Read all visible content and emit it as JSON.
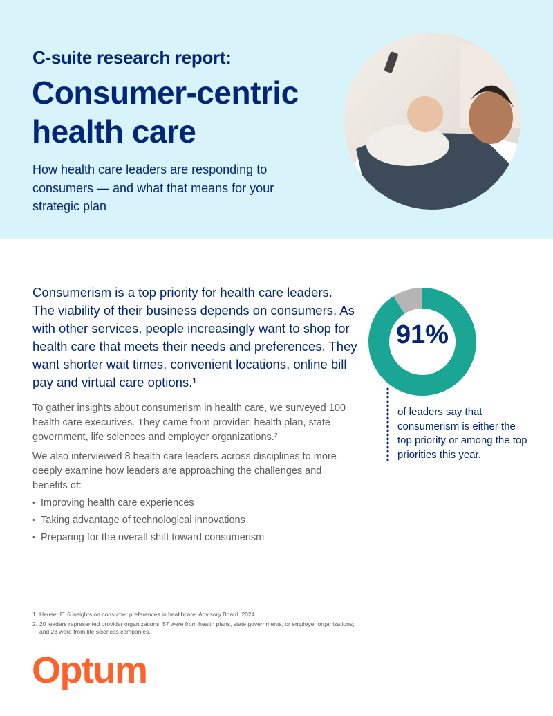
{
  "header": {
    "eyebrow": "C-suite research report:",
    "title": "Consumer-centric health care",
    "subtitle": "How health care leaders are responding to consumers — and what that means for your strategic plan"
  },
  "body": {
    "lead": "Consumerism is a top priority for health care leaders. The viability of their business depends on consumers. As with other services, people increasingly want to shop for health care that meets their needs and preferences. They want shorter wait times, convenient locations, online bill pay and virtual care options.¹",
    "paragraphs": [
      "To gather insights about consumerism in health care, we surveyed 100 health care executives. They came from provider, health plan, state government, life sciences and employer organizations.²",
      "We also interviewed 8 health care leaders across disciplines to more deeply examine how leaders are approaching the challenges and benefits of:"
    ],
    "bullets": [
      "Improving health care experiences",
      "Taking advantage of technological innovations",
      "Preparing for the overall shift toward consumerism"
    ]
  },
  "stat": {
    "values": [
      91,
      9
    ],
    "colors": [
      "#1aa595",
      "#b5b5b5"
    ],
    "label": "91%",
    "caption": "of leaders say that consumerism is either the top priority or among the top priorities this year."
  },
  "footnotes": [
    {
      "number": "1.",
      "text": "Heuser E. 6 insights on consumer preferences in healthcare. Advisory Board. 2024."
    },
    {
      "number": "2.",
      "text": "20 leaders represented provider organizations; 57 were from health plans, state governments, or employer organizations; and 23 were from life sciences companies."
    }
  ],
  "logo": "Optum"
}
